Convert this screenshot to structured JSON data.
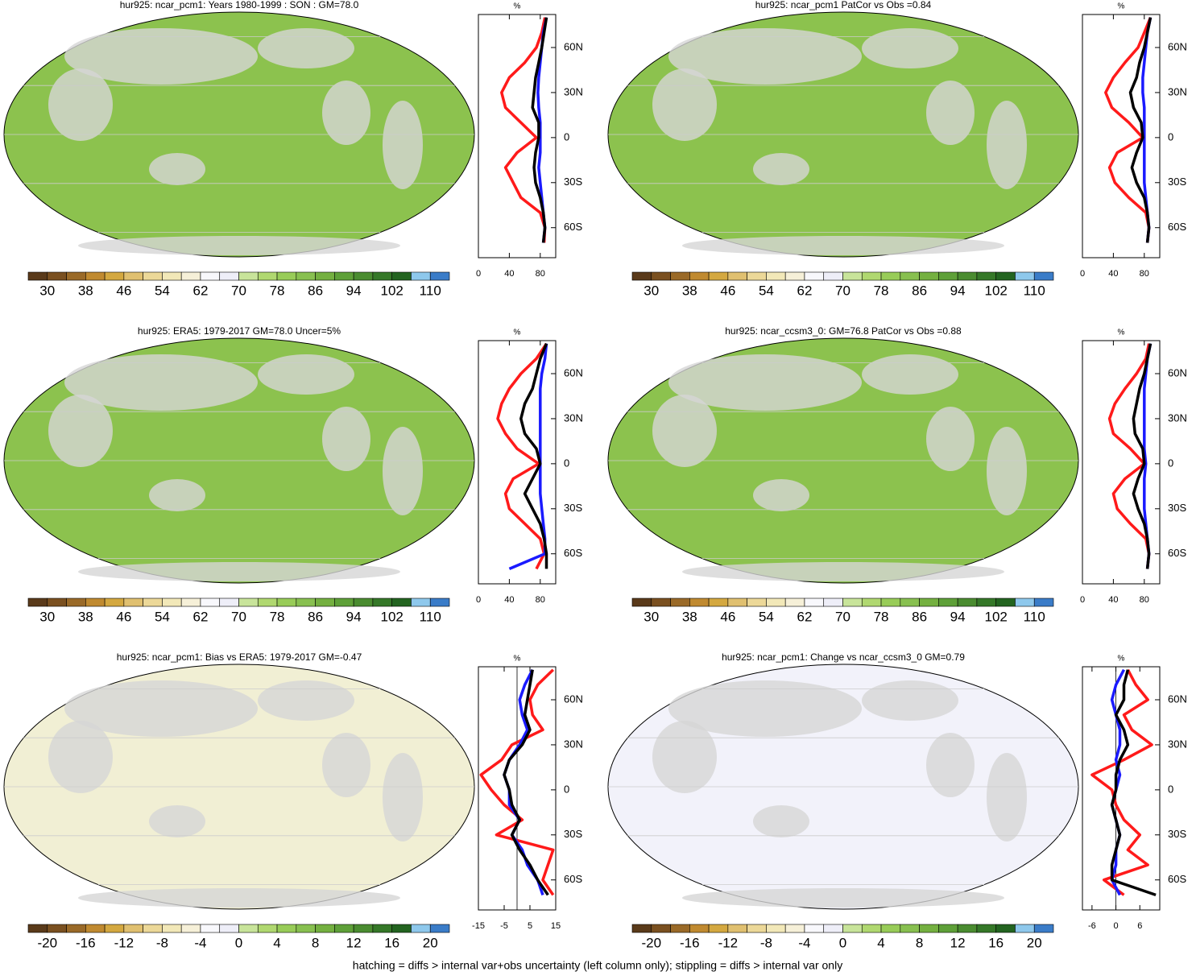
{
  "chart_data": [
    {
      "type": "map-profile",
      "title": "hur925: ncar_pcm1: Years 1980-1999 : SON : GM=78.0",
      "map_color": "#8cc24e",
      "colorbar": {
        "colors": [
          "#5a3a1a",
          "#7a5020",
          "#9a6a28",
          "#c08a30",
          "#d4a840",
          "#e0c070",
          "#ecd898",
          "#f2e8b8",
          "#f6f0d8",
          "#f8f8fc",
          "#eeeef8",
          "#c8e49a",
          "#b0d870",
          "#98cc58",
          "#88c050",
          "#74b040",
          "#5ea038",
          "#4a8c30",
          "#357828",
          "#236420",
          "#8ec8ec",
          "#3a7cc8"
        ],
        "range": [
          30,
          110
        ],
        "ticks": [
          30,
          38,
          46,
          54,
          62,
          70,
          78,
          86,
          94,
          102,
          110
        ]
      },
      "profile": {
        "type": "line",
        "xlabel": "%",
        "xlim": [
          0,
          100
        ],
        "xticks": [
          0,
          40,
          80
        ],
        "ylim": [
          -80,
          82
        ],
        "yticks": [
          {
            "value": 60,
            "label": "60N"
          },
          {
            "value": 30,
            "label": "30N"
          },
          0,
          {
            "value": -30,
            "label": "30S"
          },
          {
            "value": -60,
            "label": "60S"
          }
        ],
        "y": [
          80,
          70,
          60,
          50,
          40,
          30,
          20,
          10,
          0,
          -10,
          -20,
          -30,
          -40,
          -50,
          -60,
          -70
        ],
        "series": [
          {
            "color": "#ff1a1a",
            "values": [
              86,
              82,
              75,
              60,
              40,
              30,
              35,
              55,
              75,
              50,
              35,
              45,
              55,
              80,
              86,
              85
            ]
          },
          {
            "color": "#1a1aff",
            "values": [
              88,
              84,
              82,
              80,
              78,
              77,
              78,
              80,
              80,
              80,
              78,
              80,
              82,
              84,
              86,
              84
            ]
          },
          {
            "color": "#000000",
            "values": [
              88,
              85,
              82,
              78,
              74,
              72,
              70,
              78,
              78,
              74,
              72,
              74,
              80,
              84,
              86,
              84
            ]
          }
        ]
      }
    },
    {
      "type": "map-profile",
      "title": "hur925: ncar_pcm1 PatCor vs Obs =0.84",
      "map_color": "#8cc24e",
      "colorbar": {
        "colors": [
          "#5a3a1a",
          "#7a5020",
          "#9a6a28",
          "#c08a30",
          "#d4a840",
          "#e0c070",
          "#ecd898",
          "#f2e8b8",
          "#f6f0d8",
          "#f8f8fc",
          "#eeeef8",
          "#c8e49a",
          "#b0d870",
          "#98cc58",
          "#88c050",
          "#74b040",
          "#5ea038",
          "#4a8c30",
          "#357828",
          "#236420",
          "#8ec8ec",
          "#3a7cc8"
        ],
        "range": [
          30,
          110
        ],
        "ticks": [
          30,
          38,
          46,
          54,
          62,
          70,
          78,
          86,
          94,
          102,
          110
        ]
      },
      "profile": {
        "type": "line",
        "xlabel": "%",
        "xlim": [
          0,
          100
        ],
        "xticks": [
          0,
          40,
          80
        ],
        "ylim": [
          -80,
          82
        ],
        "yticks": [
          {
            "value": 60,
            "label": "60N"
          },
          {
            "value": 30,
            "label": "30N"
          },
          0,
          {
            "value": -30,
            "label": "30S"
          },
          {
            "value": -60,
            "label": "60S"
          }
        ],
        "y": [
          80,
          70,
          60,
          50,
          40,
          30,
          20,
          10,
          0,
          -10,
          -20,
          -30,
          -40,
          -50,
          -60,
          -70
        ],
        "series": [
          {
            "color": "#ff1a1a",
            "values": [
              88,
              80,
              72,
              55,
              40,
              30,
              38,
              60,
              78,
              45,
              35,
              42,
              60,
              82,
              86,
              84
            ]
          },
          {
            "color": "#1a1aff",
            "values": [
              88,
              84,
              82,
              80,
              78,
              78,
              80,
              80,
              80,
              80,
              80,
              80,
              82,
              84,
              86,
              84
            ]
          },
          {
            "color": "#000000",
            "values": [
              88,
              84,
              80,
              74,
              70,
              62,
              66,
              76,
              78,
              70,
              64,
              70,
              80,
              84,
              86,
              84
            ]
          }
        ]
      }
    },
    {
      "type": "map-profile",
      "title": "hur925: ERA5: 1979-2017 GM=78.0 Uncer=5%",
      "map_color": "#8cc24e",
      "colorbar": {
        "colors": [
          "#5a3a1a",
          "#7a5020",
          "#9a6a28",
          "#c08a30",
          "#d4a840",
          "#e0c070",
          "#ecd898",
          "#f2e8b8",
          "#f6f0d8",
          "#f8f8fc",
          "#eeeef8",
          "#c8e49a",
          "#b0d870",
          "#98cc58",
          "#88c050",
          "#74b040",
          "#5ea038",
          "#4a8c30",
          "#357828",
          "#236420",
          "#8ec8ec",
          "#3a7cc8"
        ],
        "range": [
          30,
          110
        ],
        "ticks": [
          30,
          38,
          46,
          54,
          62,
          70,
          78,
          86,
          94,
          102,
          110
        ]
      },
      "profile": {
        "type": "line",
        "xlabel": "%",
        "xlim": [
          0,
          100
        ],
        "xticks": [
          0,
          40,
          80
        ],
        "ylim": [
          -80,
          82
        ],
        "yticks": [
          {
            "value": 60,
            "label": "60N"
          },
          {
            "value": 30,
            "label": "30N"
          },
          0,
          {
            "value": -30,
            "label": "30S"
          },
          {
            "value": -60,
            "label": "60S"
          }
        ],
        "y": [
          80,
          70,
          60,
          50,
          40,
          30,
          20,
          10,
          0,
          -10,
          -20,
          -30,
          -40,
          -50,
          -60,
          -70
        ],
        "series": [
          {
            "color": "#ff1a1a",
            "values": [
              88,
              75,
              55,
              40,
              30,
              25,
              35,
              50,
              78,
              45,
              35,
              40,
              60,
              80,
              85,
              75
            ]
          },
          {
            "color": "#1a1aff",
            "values": [
              88,
              86,
              82,
              80,
              80,
              80,
              80,
              80,
              80,
              80,
              80,
              82,
              84,
              86,
              86,
              40
            ]
          },
          {
            "color": "#000000",
            "values": [
              88,
              80,
              75,
              70,
              60,
              55,
              60,
              75,
              80,
              70,
              60,
              70,
              80,
              85,
              88,
              88
            ]
          }
        ]
      }
    },
    {
      "type": "map-profile",
      "title": "hur925: ncar_ccsm3_0: GM=76.8 PatCor vs Obs =0.88",
      "map_color": "#8cc24e",
      "colorbar": {
        "colors": [
          "#5a3a1a",
          "#7a5020",
          "#9a6a28",
          "#c08a30",
          "#d4a840",
          "#e0c070",
          "#ecd898",
          "#f2e8b8",
          "#f6f0d8",
          "#f8f8fc",
          "#eeeef8",
          "#c8e49a",
          "#b0d870",
          "#98cc58",
          "#88c050",
          "#74b040",
          "#5ea038",
          "#4a8c30",
          "#357828",
          "#236420",
          "#8ec8ec",
          "#3a7cc8"
        ],
        "range": [
          30,
          110
        ],
        "ticks": [
          30,
          38,
          46,
          54,
          62,
          70,
          78,
          86,
          94,
          102,
          110
        ]
      },
      "profile": {
        "type": "line",
        "xlabel": "%",
        "xlim": [
          0,
          100
        ],
        "xticks": [
          0,
          40,
          80
        ],
        "ylim": [
          -80,
          82
        ],
        "yticks": [
          {
            "value": 60,
            "label": "60N"
          },
          {
            "value": 30,
            "label": "30N"
          },
          0,
          {
            "value": -30,
            "label": "30S"
          },
          {
            "value": -60,
            "label": "60S"
          }
        ],
        "y": [
          80,
          70,
          60,
          50,
          40,
          30,
          20,
          10,
          0,
          -10,
          -20,
          -30,
          -40,
          -50,
          -60,
          -70
        ],
        "series": [
          {
            "color": "#ff1a1a",
            "values": [
              86,
              82,
              70,
              55,
              42,
              35,
              40,
              62,
              80,
              55,
              40,
              45,
              62,
              82,
              86,
              84
            ]
          },
          {
            "color": "#1a1aff",
            "values": [
              88,
              84,
              82,
              80,
              80,
              80,
              80,
              80,
              82,
              80,
              80,
              80,
              82,
              84,
              86,
              84
            ]
          },
          {
            "color": "#000000",
            "values": [
              88,
              84,
              80,
              74,
              70,
              66,
              68,
              78,
              80,
              72,
              66,
              72,
              80,
              84,
              86,
              84
            ]
          }
        ]
      }
    },
    {
      "type": "map-profile",
      "title": "hur925: ncar_pcm1: Bias vs ERA5: 1979-2017  GM=-0.47",
      "map_color": "#f1efd4",
      "zero_line": true,
      "colorbar": {
        "colors": [
          "#5a3a1a",
          "#7a5020",
          "#9a6a28",
          "#c08a30",
          "#d4a840",
          "#e0c070",
          "#ecd898",
          "#f2e8b8",
          "#f6f0d8",
          "#f8f8fc",
          "#eeeef8",
          "#c8e49a",
          "#b0d870",
          "#98cc58",
          "#88c050",
          "#74b040",
          "#5ea038",
          "#4a8c30",
          "#357828",
          "#236420",
          "#8ec8ec",
          "#3a7cc8"
        ],
        "range": [
          -20,
          20
        ],
        "ticks": [
          -20,
          -16,
          -12,
          -8,
          -4,
          0,
          4,
          8,
          12,
          16,
          20
        ]
      },
      "profile": {
        "type": "line",
        "xlabel": "%",
        "xlim": [
          -15,
          15
        ],
        "xticks": [
          -15,
          -5,
          5,
          15
        ],
        "ylim": [
          -80,
          82
        ],
        "yticks": [
          {
            "value": 60,
            "label": "60N"
          },
          {
            "value": 30,
            "label": "30N"
          },
          0,
          {
            "value": -30,
            "label": "30S"
          },
          {
            "value": -60,
            "label": "60S"
          }
        ],
        "y": [
          80,
          70,
          60,
          50,
          40,
          30,
          20,
          10,
          0,
          -10,
          -20,
          -30,
          -40,
          -50,
          -60,
          -70
        ],
        "series": [
          {
            "color": "#ff1a1a",
            "values": [
              14,
              8,
              5,
              6,
              10,
              -2,
              -6,
              -14,
              -10,
              -5,
              2,
              -8,
              14,
              12,
              10,
              14
            ]
          },
          {
            "color": "#1a1aff",
            "values": [
              6,
              3,
              1,
              2,
              4,
              1,
              -3,
              -5,
              -3,
              -3,
              1,
              -2,
              2,
              4,
              8,
              10
            ]
          },
          {
            "color": "#000000",
            "values": [
              6,
              5,
              4,
              3,
              5,
              2,
              -3,
              -5,
              -3,
              -2,
              1,
              -2,
              1,
              5,
              8,
              12
            ]
          }
        ]
      }
    },
    {
      "type": "map-profile",
      "title": "hur925: ncar_pcm1: Change vs ncar_ccsm3_0 GM=0.79",
      "map_color": "#f2f2fa",
      "zero_line": true,
      "colorbar": {
        "colors": [
          "#5a3a1a",
          "#7a5020",
          "#9a6a28",
          "#c08a30",
          "#d4a840",
          "#e0c070",
          "#ecd898",
          "#f2e8b8",
          "#f6f0d8",
          "#f8f8fc",
          "#eeeef8",
          "#c8e49a",
          "#b0d870",
          "#98cc58",
          "#88c050",
          "#74b040",
          "#5ea038",
          "#4a8c30",
          "#357828",
          "#236420",
          "#8ec8ec",
          "#3a7cc8"
        ],
        "range": [
          -20,
          20
        ],
        "ticks": [
          -20,
          -16,
          -12,
          -8,
          -4,
          0,
          4,
          8,
          12,
          16,
          20
        ]
      },
      "profile": {
        "type": "line",
        "xlabel": "%",
        "xlim": [
          -8.4,
          11
        ],
        "xticks": [
          -6,
          0,
          6
        ],
        "ylim": [
          -80,
          82
        ],
        "yticks": [
          {
            "value": 60,
            "label": "60N"
          },
          {
            "value": 30,
            "label": "30N"
          },
          0,
          {
            "value": -30,
            "label": "30S"
          },
          {
            "value": -60,
            "label": "60S"
          }
        ],
        "y": [
          80,
          70,
          60,
          50,
          40,
          30,
          20,
          10,
          0,
          -10,
          -20,
          -30,
          -40,
          -50,
          -60,
          -70
        ],
        "series": [
          {
            "color": "#ff1a1a",
            "values": [
              3,
              5,
              8,
              2,
              4,
              9,
              2,
              -6,
              -1,
              0,
              2,
              6,
              3,
              8,
              -3,
              2
            ]
          },
          {
            "color": "#1a1aff",
            "values": [
              2,
              0,
              -1,
              0,
              1,
              1,
              0,
              1,
              0,
              -1,
              0,
              1,
              0,
              0,
              -1,
              1
            ]
          },
          {
            "color": "#000000",
            "values": [
              3,
              2,
              2,
              0,
              2,
              3,
              1,
              0,
              0,
              -1,
              0,
              1,
              0,
              -1,
              -1,
              10
            ]
          }
        ]
      }
    }
  ],
  "footnote": "hatching = diffs > internal var+obs uncertainty (left column only); stippling = diffs > internal var only"
}
